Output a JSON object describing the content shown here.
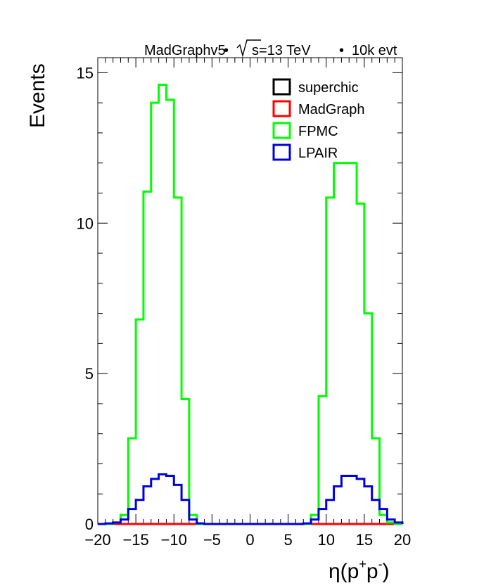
{
  "header": {
    "generator": "MadGraphv5",
    "energy_prefix": "s=13 TeV",
    "events": "10k evt",
    "separator": "•"
  },
  "chart_data": {
    "type": "line",
    "title": "",
    "xlabel_base": "η(p",
    "xlabel_sup1": "+",
    "xlabel_mid": "p",
    "xlabel_sup2": "-",
    "xlabel_end": ")",
    "ylabel": "Events",
    "xlim": [
      -20,
      20
    ],
    "ylim": [
      0,
      15.5
    ],
    "x_ticks": [
      -20,
      -15,
      -10,
      -5,
      0,
      5,
      10,
      15,
      20
    ],
    "x_tick_labels": [
      "−20",
      "−15",
      "−10",
      "−5",
      "0",
      "5",
      "10",
      "15",
      "20"
    ],
    "y_ticks": [
      0,
      5,
      10,
      15
    ],
    "y_tick_labels": [
      "0",
      "5",
      "10",
      "15"
    ],
    "legend_position": "top-right",
    "bin_edges": [
      -20,
      -19,
      -18,
      -17,
      -16,
      -15,
      -14,
      -13,
      -12,
      -11,
      -10,
      -9,
      -8,
      -7,
      -6,
      -5,
      -4,
      -3,
      -2,
      -1,
      0,
      1,
      2,
      3,
      4,
      5,
      6,
      7,
      8,
      9,
      10,
      11,
      12,
      13,
      14,
      15,
      16,
      17,
      18,
      19,
      20
    ],
    "series": [
      {
        "name": "superchic",
        "color": "#000000",
        "values": [
          0,
          0,
          0,
          0,
          0,
          0,
          0,
          0,
          0,
          0,
          0,
          0,
          0,
          0,
          0,
          0,
          0,
          0,
          0,
          0,
          0,
          0,
          0,
          0,
          0,
          0,
          0,
          0,
          0,
          0,
          0,
          0,
          0,
          0,
          0,
          0,
          0,
          0,
          0,
          0
        ]
      },
      {
        "name": "MadGraph",
        "color": "#ff0000",
        "values": [
          0,
          0,
          0,
          0,
          0,
          0,
          0,
          0,
          0,
          0,
          0,
          0,
          0,
          0,
          0,
          0,
          0,
          0,
          0,
          0,
          0,
          0,
          0,
          0,
          0,
          0,
          0,
          0,
          0,
          0,
          0,
          0,
          0,
          0,
          0,
          0,
          0,
          0,
          0,
          0
        ]
      },
      {
        "name": "FPMC",
        "color": "#00ff00",
        "values": [
          0,
          0,
          0.05,
          0.3,
          2.85,
          6.8,
          11.05,
          14.0,
          14.6,
          14.1,
          10.85,
          4.15,
          0.3,
          0,
          0,
          0,
          0,
          0,
          0,
          0,
          0,
          0,
          0,
          0,
          0,
          0,
          0,
          0,
          0.3,
          4.25,
          10.85,
          12.0,
          12.0,
          12.0,
          10.65,
          7.0,
          2.85,
          0.3,
          0.05,
          0
        ]
      },
      {
        "name": "LPAIR",
        "color": "#0000dd",
        "values": [
          0,
          0.02,
          0.05,
          0.15,
          0.5,
          0.8,
          1.25,
          1.5,
          1.65,
          1.6,
          1.3,
          0.8,
          0.15,
          0.02,
          0,
          0,
          0,
          0,
          0,
          0,
          0,
          0,
          0,
          0,
          0,
          0,
          0,
          0.02,
          0.15,
          0.5,
          0.8,
          1.25,
          1.6,
          1.6,
          1.5,
          1.25,
          0.8,
          0.5,
          0.15,
          0.05
        ]
      }
    ]
  }
}
